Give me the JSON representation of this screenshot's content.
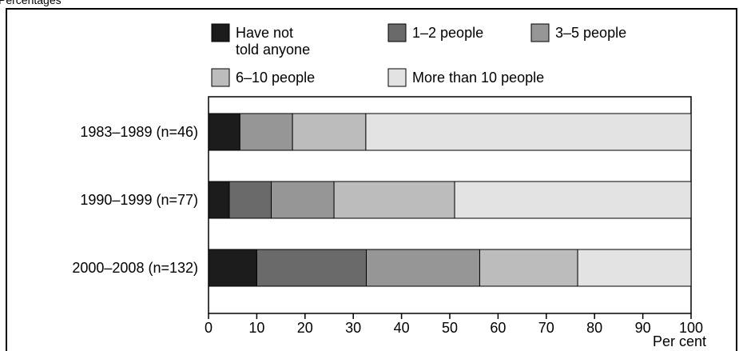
{
  "header": {
    "corner_text": "Percentages"
  },
  "chart_data": {
    "type": "bar",
    "orientation": "horizontal",
    "stacked": true,
    "categories": [
      "1983–1989 (n=46)",
      "1990–1999 (n=77)",
      "2000–2008 (n=132)"
    ],
    "series": [
      {
        "name": "Have not told anyone",
        "color": "#1c1c1c",
        "values": [
          6.5,
          4.3,
          10.0
        ]
      },
      {
        "name": "1–2 people",
        "color": "#6a6a6a",
        "values": [
          0.0,
          8.7,
          22.7
        ]
      },
      {
        "name": "3–5 people",
        "color": "#969696",
        "values": [
          10.9,
          13.0,
          23.5
        ]
      },
      {
        "name": "6–10 people",
        "color": "#bcbcbc",
        "values": [
          15.2,
          25.0,
          20.3
        ]
      },
      {
        "name": "More than 10 people",
        "color": "#e3e3e3",
        "values": [
          67.4,
          49.0,
          23.5
        ]
      }
    ],
    "xlim": [
      0,
      100
    ],
    "xticks": [
      0,
      10,
      20,
      30,
      40,
      50,
      60,
      70,
      80,
      90,
      100
    ],
    "xlabel": "Per cent",
    "ylabel": "",
    "grid": false,
    "legend_position": "top"
  }
}
